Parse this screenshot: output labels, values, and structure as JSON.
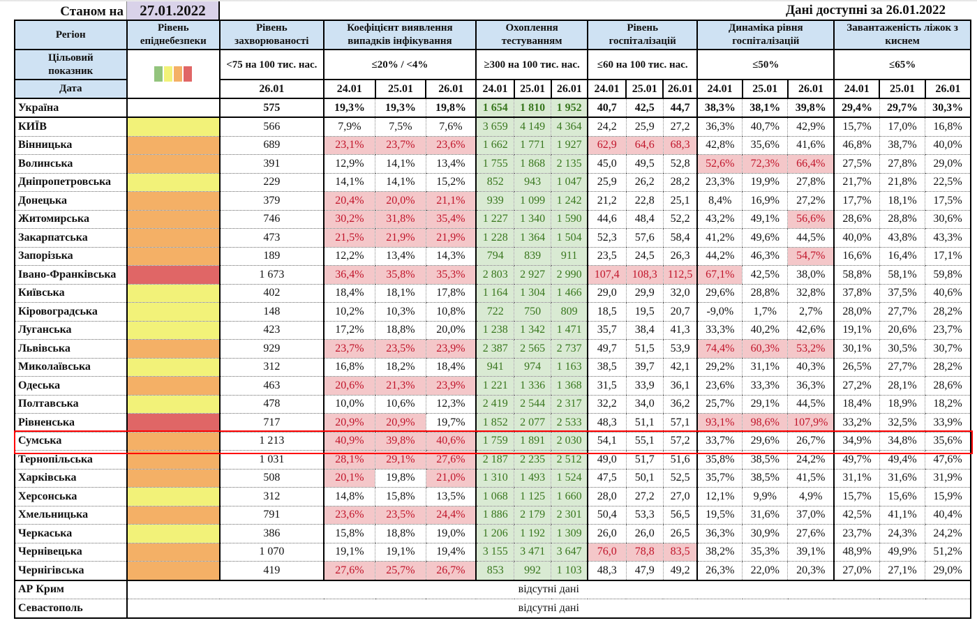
{
  "header": {
    "as_of_label": "Станом на",
    "as_of_date": "27.01.2022",
    "available": "Дані доступні за  26.01.2022"
  },
  "columns": {
    "region": "Регіон",
    "level": "Рівень епіднебезпеки",
    "incidence": "Рівень захворюваності",
    "coef": "Коефіцієнт виявлення випадків інфікування",
    "test": "Охоплення тестуванням",
    "hosp": "Рівень госпіталізацій",
    "dyn": "Динаміка рівня госпіталізацій",
    "beds": "Завантаженість ліжок з киснем"
  },
  "targets": {
    "label": "Цільовий показник",
    "incidence": "<75 на 100 тис. нас.",
    "coef": "≤20% / <4%",
    "test": "≥300 на 100 тис. нас.",
    "hosp": "≤60 на 100 тис. нас.",
    "dyn": "≤50%",
    "beds": "≤65%"
  },
  "level_colors": {
    "G": "#93c47d",
    "Y": "#f2f279",
    "O": "#f4b066",
    "R": "#e06666"
  },
  "dates": {
    "label": "Дата",
    "incidence": "26.01",
    "triple": [
      "24.01",
      "25.01",
      "26.01"
    ]
  },
  "ukraine": {
    "name": "Україна",
    "inc": "575",
    "coef": [
      "19,3%",
      "19,3%",
      "19,8%"
    ],
    "test": [
      "1 654",
      "1 810",
      "1 952"
    ],
    "hosp": [
      "40,7",
      "42,5",
      "44,7"
    ],
    "dyn": [
      "38,3%",
      "38,1%",
      "39,8%"
    ],
    "beds": [
      "29,4%",
      "29,7%",
      "30,3%"
    ]
  },
  "rows": [
    {
      "name": "КИЇВ",
      "lvl": "Y",
      "inc": "566",
      "coef": [
        "7,9%",
        "7,5%",
        "7,6%"
      ],
      "test": [
        "3 659",
        "4 149",
        "4 364"
      ],
      "hosp": [
        "24,2",
        "25,9",
        "27,2"
      ],
      "dyn": [
        "36,3%",
        "40,7%",
        "42,9%"
      ],
      "beds": [
        "15,7%",
        "17,0%",
        "16,8%"
      ],
      "hl": {}
    },
    {
      "name": "Вінницька",
      "lvl": "O",
      "inc": "689",
      "coef": [
        "23,1%",
        "23,7%",
        "23,6%"
      ],
      "test": [
        "1 662",
        "1 771",
        "1 927"
      ],
      "hosp": [
        "62,9",
        "64,6",
        "68,3"
      ],
      "dyn": [
        "42,8%",
        "35,6%",
        "41,6%"
      ],
      "beds": [
        "46,8%",
        "38,7%",
        "40,0%"
      ],
      "hl": {
        "coef": [
          0,
          1,
          2
        ],
        "hosp": [
          0,
          1,
          2
        ]
      }
    },
    {
      "name": "Волинська",
      "lvl": "O",
      "inc": "391",
      "coef": [
        "12,9%",
        "14,1%",
        "13,4%"
      ],
      "test": [
        "1 755",
        "1 868",
        "2 135"
      ],
      "hosp": [
        "45,0",
        "49,5",
        "52,8"
      ],
      "dyn": [
        "52,6%",
        "72,3%",
        "66,4%"
      ],
      "beds": [
        "27,5%",
        "27,8%",
        "29,0%"
      ],
      "hl": {
        "dyn": [
          0,
          1,
          2
        ]
      }
    },
    {
      "name": "Дніпропетровська",
      "lvl": "Y",
      "inc": "229",
      "coef": [
        "14,1%",
        "14,1%",
        "15,2%"
      ],
      "test": [
        "852",
        "943",
        "1 047"
      ],
      "hosp": [
        "25,9",
        "26,2",
        "28,2"
      ],
      "dyn": [
        "23,3%",
        "19,9%",
        "27,8%"
      ],
      "beds": [
        "21,7%",
        "21,8%",
        "22,5%"
      ],
      "hl": {}
    },
    {
      "name": "Донецька",
      "lvl": "O",
      "inc": "379",
      "coef": [
        "20,4%",
        "20,0%",
        "21,1%"
      ],
      "test": [
        "939",
        "1 099",
        "1 242"
      ],
      "hosp": [
        "21,2",
        "22,8",
        "25,1"
      ],
      "dyn": [
        "8,4%",
        "16,9%",
        "27,2%"
      ],
      "beds": [
        "17,7%",
        "18,1%",
        "17,5%"
      ],
      "hl": {
        "coef": [
          0,
          1,
          2
        ]
      }
    },
    {
      "name": "Житомирська",
      "lvl": "O",
      "inc": "746",
      "coef": [
        "30,2%",
        "31,8%",
        "35,4%"
      ],
      "test": [
        "1 227",
        "1 340",
        "1 590"
      ],
      "hosp": [
        "44,6",
        "48,4",
        "52,2"
      ],
      "dyn": [
        "43,2%",
        "49,1%",
        "56,6%"
      ],
      "beds": [
        "28,6%",
        "28,8%",
        "30,6%"
      ],
      "hl": {
        "coef": [
          0,
          1,
          2
        ],
        "dyn": [
          2
        ]
      }
    },
    {
      "name": "Закарпатська",
      "lvl": "O",
      "inc": "473",
      "coef": [
        "21,5%",
        "21,9%",
        "21,9%"
      ],
      "test": [
        "1 228",
        "1 364",
        "1 504"
      ],
      "hosp": [
        "52,3",
        "57,6",
        "58,4"
      ],
      "dyn": [
        "41,2%",
        "49,6%",
        "44,5%"
      ],
      "beds": [
        "40,0%",
        "43,8%",
        "43,3%"
      ],
      "hl": {
        "coef": [
          0,
          1,
          2
        ]
      }
    },
    {
      "name": "Запорізька",
      "lvl": "O",
      "inc": "189",
      "coef": [
        "12,2%",
        "13,4%",
        "14,3%"
      ],
      "test": [
        "794",
        "839",
        "911"
      ],
      "hosp": [
        "23,5",
        "24,5",
        "26,3"
      ],
      "dyn": [
        "44,2%",
        "46,3%",
        "54,7%"
      ],
      "beds": [
        "16,6%",
        "16,4%",
        "17,1%"
      ],
      "hl": {
        "dyn": [
          2
        ]
      }
    },
    {
      "name": "Івано-Франківська",
      "lvl": "R",
      "inc": "1 673",
      "coef": [
        "36,4%",
        "35,8%",
        "35,3%"
      ],
      "test": [
        "2 803",
        "2 927",
        "2 990"
      ],
      "hosp": [
        "107,4",
        "108,3",
        "112,5"
      ],
      "dyn": [
        "67,1%",
        "42,5%",
        "38,0%"
      ],
      "beds": [
        "58,8%",
        "58,1%",
        "59,8%"
      ],
      "hl": {
        "coef": [
          0,
          1,
          2
        ],
        "hosp": [
          0,
          1,
          2
        ],
        "dyn": [
          0
        ]
      }
    },
    {
      "name": "Київська",
      "lvl": "Y",
      "inc": "402",
      "coef": [
        "18,4%",
        "18,1%",
        "17,8%"
      ],
      "test": [
        "1 164",
        "1 304",
        "1 466"
      ],
      "hosp": [
        "29,0",
        "29,9",
        "32,0"
      ],
      "dyn": [
        "29,6%",
        "28,8%",
        "32,8%"
      ],
      "beds": [
        "37,8%",
        "37,5%",
        "40,6%"
      ],
      "hl": {}
    },
    {
      "name": "Кіровоградська",
      "lvl": "Y",
      "inc": "148",
      "coef": [
        "10,2%",
        "10,3%",
        "10,8%"
      ],
      "test": [
        "722",
        "750",
        "809"
      ],
      "hosp": [
        "18,5",
        "19,5",
        "20,7"
      ],
      "dyn": [
        "-9,0%",
        "1,7%",
        "2,7%"
      ],
      "beds": [
        "28,0%",
        "27,7%",
        "28,2%"
      ],
      "hl": {}
    },
    {
      "name": "Луганська",
      "lvl": "Y",
      "inc": "423",
      "coef": [
        "17,2%",
        "18,8%",
        "20,0%"
      ],
      "test": [
        "1 238",
        "1 342",
        "1 471"
      ],
      "hosp": [
        "35,7",
        "38,4",
        "41,3"
      ],
      "dyn": [
        "33,3%",
        "40,2%",
        "42,6%"
      ],
      "beds": [
        "19,1%",
        "20,6%",
        "23,7%"
      ],
      "hl": {}
    },
    {
      "name": "Львівська",
      "lvl": "O",
      "inc": "929",
      "coef": [
        "23,7%",
        "23,5%",
        "23,9%"
      ],
      "test": [
        "2 387",
        "2 565",
        "2 737"
      ],
      "hosp": [
        "49,7",
        "51,5",
        "53,9"
      ],
      "dyn": [
        "74,4%",
        "60,3%",
        "53,2%"
      ],
      "beds": [
        "30,1%",
        "30,5%",
        "30,7%"
      ],
      "hl": {
        "coef": [
          0,
          1,
          2
        ],
        "dyn": [
          0,
          1,
          2
        ]
      }
    },
    {
      "name": "Миколаївська",
      "lvl": "Y",
      "inc": "312",
      "coef": [
        "16,8%",
        "18,2%",
        "18,4%"
      ],
      "test": [
        "941",
        "974",
        "1 163"
      ],
      "hosp": [
        "38,5",
        "39,7",
        "42,1"
      ],
      "dyn": [
        "29,2%",
        "31,1%",
        "40,3%"
      ],
      "beds": [
        "26,5%",
        "27,7%",
        "28,2%"
      ],
      "hl": {}
    },
    {
      "name": "Одеська",
      "lvl": "O",
      "inc": "463",
      "coef": [
        "20,6%",
        "21,3%",
        "23,9%"
      ],
      "test": [
        "1 221",
        "1 336",
        "1 368"
      ],
      "hosp": [
        "31,5",
        "33,9",
        "36,1"
      ],
      "dyn": [
        "23,6%",
        "33,3%",
        "36,3%"
      ],
      "beds": [
        "27,2%",
        "28,1%",
        "28,6%"
      ],
      "hl": {
        "coef": [
          0,
          1,
          2
        ]
      }
    },
    {
      "name": "Полтавська",
      "lvl": "Y",
      "inc": "478",
      "coef": [
        "10,0%",
        "10,6%",
        "12,3%"
      ],
      "test": [
        "2 419",
        "2 544",
        "2 317"
      ],
      "hosp": [
        "32,2",
        "34,0",
        "36,2"
      ],
      "dyn": [
        "25,7%",
        "29,1%",
        "44,5%"
      ],
      "beds": [
        "18,4%",
        "18,9%",
        "18,2%"
      ],
      "hl": {}
    },
    {
      "name": "Рівненська",
      "lvl": "R",
      "inc": "717",
      "coef": [
        "20,9%",
        "20,9%",
        "19,7%"
      ],
      "test": [
        "1 852",
        "2 077",
        "2 533"
      ],
      "hosp": [
        "48,3",
        "51,1",
        "57,1"
      ],
      "dyn": [
        "93,1%",
        "98,6%",
        "107,9%"
      ],
      "beds": [
        "33,2%",
        "32,5%",
        "33,9%"
      ],
      "hl": {
        "coef": [
          0,
          1
        ],
        "dyn": [
          0,
          1,
          2
        ]
      }
    },
    {
      "name": "Сумська",
      "lvl": "O",
      "inc": "1 213",
      "coef": [
        "40,9%",
        "39,8%",
        "40,6%"
      ],
      "test": [
        "1 759",
        "1 891",
        "2 030"
      ],
      "hosp": [
        "54,1",
        "55,1",
        "57,2"
      ],
      "dyn": [
        "33,7%",
        "29,6%",
        "26,7%"
      ],
      "beds": [
        "34,9%",
        "34,8%",
        "35,6%"
      ],
      "hl": {
        "coef": [
          0,
          1,
          2
        ]
      },
      "selected": true
    },
    {
      "name": "Тернопільська",
      "lvl": "O",
      "inc": "1 031",
      "coef": [
        "28,1%",
        "29,1%",
        "27,6%"
      ],
      "test": [
        "2 187",
        "2 235",
        "2 512"
      ],
      "hosp": [
        "49,0",
        "51,7",
        "51,6"
      ],
      "dyn": [
        "35,8%",
        "38,5%",
        "24,2%"
      ],
      "beds": [
        "49,7%",
        "49,4%",
        "47,6%"
      ],
      "hl": {
        "coef": [
          0,
          1,
          2
        ]
      }
    },
    {
      "name": "Харківська",
      "lvl": "O",
      "inc": "508",
      "coef": [
        "20,1%",
        "19,8%",
        "21,0%"
      ],
      "test": [
        "1 310",
        "1 493",
        "1 524"
      ],
      "hosp": [
        "47,5",
        "50,1",
        "52,5"
      ],
      "dyn": [
        "35,7%",
        "38,5%",
        "41,5%"
      ],
      "beds": [
        "31,1%",
        "31,6%",
        "31,9%"
      ],
      "hl": {
        "coef": [
          0,
          2
        ]
      }
    },
    {
      "name": "Херсонська",
      "lvl": "Y",
      "inc": "312",
      "coef": [
        "14,8%",
        "15,8%",
        "13,5%"
      ],
      "test": [
        "1 068",
        "1 125",
        "1 660"
      ],
      "hosp": [
        "28,0",
        "27,2",
        "27,0"
      ],
      "dyn": [
        "12,1%",
        "9,9%",
        "4,9%"
      ],
      "beds": [
        "15,7%",
        "15,6%",
        "15,9%"
      ],
      "hl": {}
    },
    {
      "name": "Хмельницька",
      "lvl": "O",
      "inc": "791",
      "coef": [
        "23,6%",
        "23,5%",
        "24,4%"
      ],
      "test": [
        "1 886",
        "2 179",
        "2 301"
      ],
      "hosp": [
        "50,4",
        "53,3",
        "56,5"
      ],
      "dyn": [
        "19,5%",
        "31,6%",
        "37,0%"
      ],
      "beds": [
        "42,5%",
        "41,1%",
        "40,4%"
      ],
      "hl": {
        "coef": [
          0,
          1,
          2
        ]
      }
    },
    {
      "name": "Черкаська",
      "lvl": "Y",
      "inc": "386",
      "coef": [
        "15,8%",
        "18,8%",
        "19,0%"
      ],
      "test": [
        "1 206",
        "1 192",
        "1 309"
      ],
      "hosp": [
        "26,0",
        "26,0",
        "26,5"
      ],
      "dyn": [
        "36,3%",
        "30,9%",
        "27,6%"
      ],
      "beds": [
        "23,7%",
        "24,3%",
        "24,2%"
      ],
      "hl": {}
    },
    {
      "name": "Чернівецька",
      "lvl": "O",
      "inc": "1 070",
      "coef": [
        "19,1%",
        "19,1%",
        "19,4%"
      ],
      "test": [
        "3 155",
        "3 471",
        "3 647"
      ],
      "hosp": [
        "76,0",
        "78,8",
        "83,5"
      ],
      "dyn": [
        "38,2%",
        "35,3%",
        "39,1%"
      ],
      "beds": [
        "48,9%",
        "49,9%",
        "51,2%"
      ],
      "hl": {
        "hosp": [
          0,
          1,
          2
        ]
      }
    },
    {
      "name": "Чернігівська",
      "lvl": "O",
      "inc": "419",
      "coef": [
        "27,6%",
        "25,7%",
        "26,7%"
      ],
      "test": [
        "853",
        "992",
        "1 103"
      ],
      "hosp": [
        "48,3",
        "47,9",
        "49,2"
      ],
      "dyn": [
        "26,3%",
        "22,0%",
        "20,3%"
      ],
      "beds": [
        "27,0%",
        "27,1%",
        "29,0%"
      ],
      "hl": {
        "coef": [
          0,
          1,
          2
        ]
      }
    }
  ],
  "no_data_rows": [
    {
      "name": "АР Крим",
      "text": "відсутні дані"
    },
    {
      "name": "Севастополь",
      "text": "відсутні дані"
    }
  ]
}
